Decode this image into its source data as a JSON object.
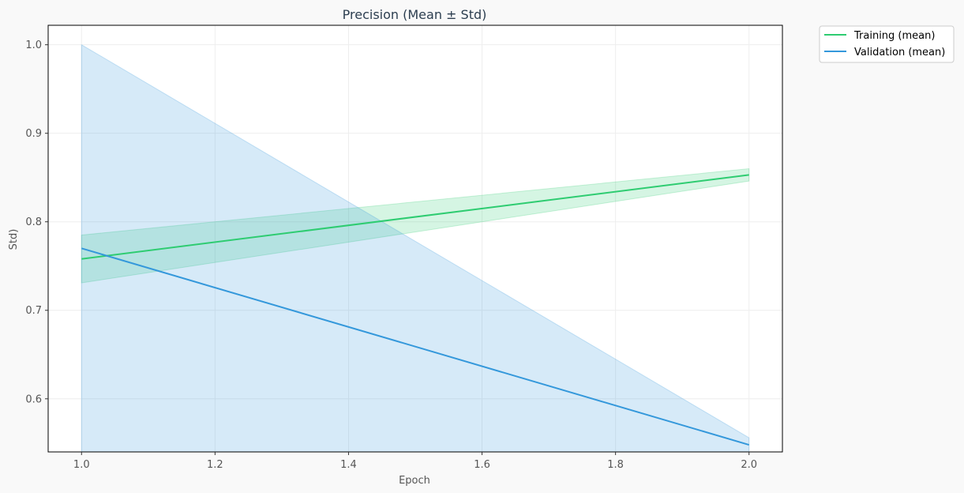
{
  "chart_data": {
    "type": "line",
    "title": "Precision (Mean ± Std)",
    "xlabel": "Epoch",
    "ylabel": "Std)",
    "xlim": [
      0.95,
      2.05
    ],
    "ylim": [
      0.54,
      1.022
    ],
    "x_ticks": [
      1.0,
      1.2,
      1.4,
      1.6,
      1.8,
      2.0
    ],
    "x_tick_labels": [
      "1.0",
      "1.2",
      "1.4",
      "1.6",
      "1.8",
      "2.0"
    ],
    "y_ticks": [
      0.6,
      0.7,
      0.8,
      0.9,
      1.0
    ],
    "y_tick_labels": [
      "0.6",
      "0.7",
      "0.8",
      "0.9",
      "1.0"
    ],
    "grid": true,
    "legend_position": "outside-top-right",
    "x": [
      1,
      2
    ],
    "series": [
      {
        "name": "Training (mean)",
        "color": "#2ecc71",
        "mean": [
          0.758,
          0.853
        ],
        "lower": [
          0.731,
          0.846
        ],
        "upper": [
          0.785,
          0.86
        ]
      },
      {
        "name": "Validation (mean)",
        "color": "#3498db",
        "mean": [
          0.77,
          0.548
        ],
        "lower": [
          0.54,
          0.54
        ],
        "upper": [
          1.0,
          0.556
        ]
      }
    ]
  }
}
